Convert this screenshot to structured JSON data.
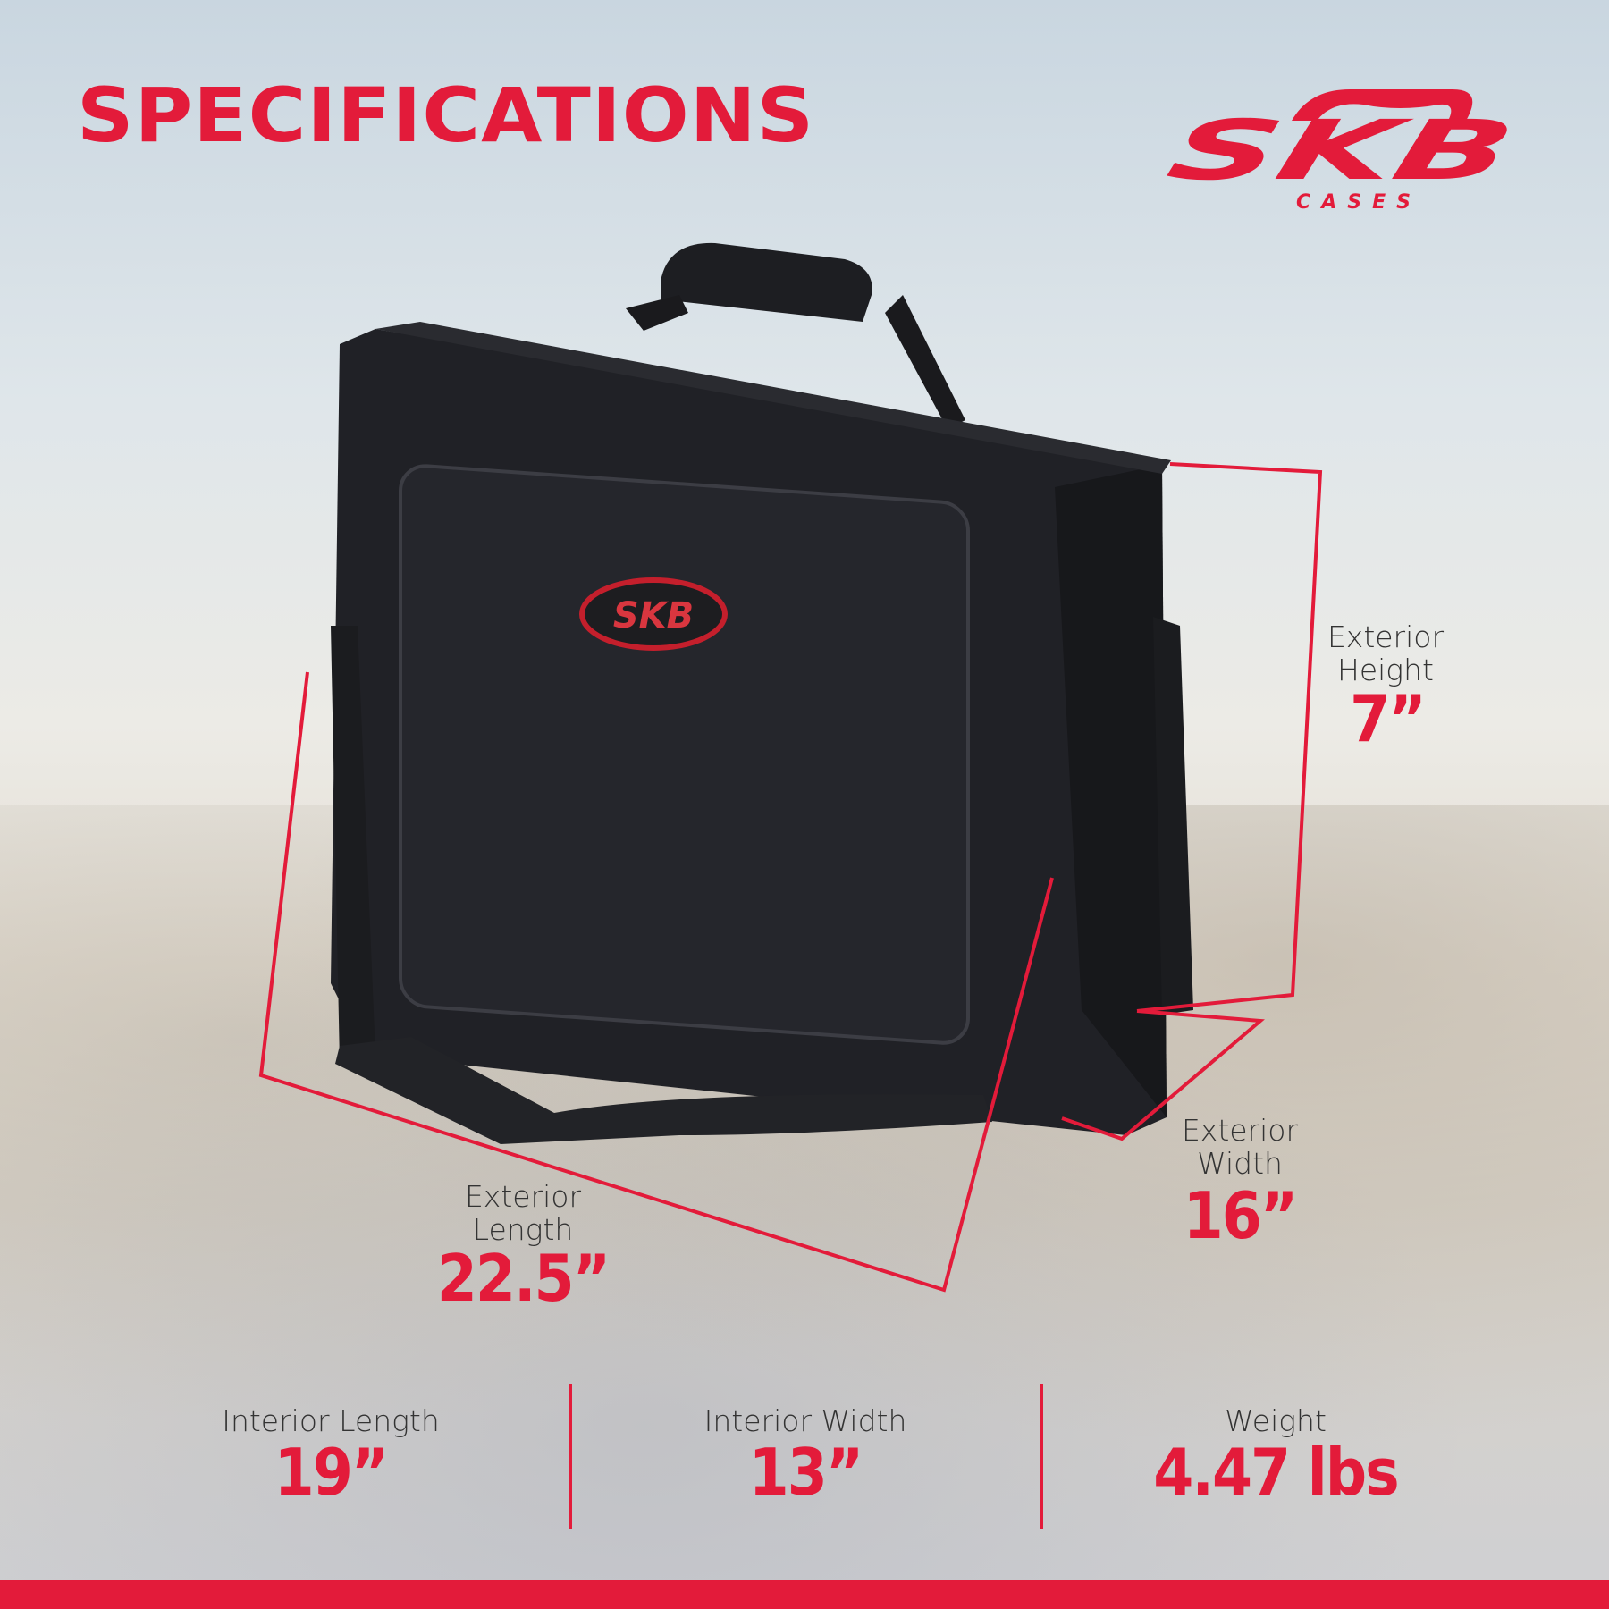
{
  "header": {
    "title": "SPECIFICATIONS"
  },
  "brand": {
    "logo_text": "SKB",
    "logo_subtext": "CASES",
    "accent_color": "#e31b3a"
  },
  "product": {
    "badge_text": "SKB"
  },
  "dimensions": {
    "height": {
      "label_line1": "Exterior",
      "label_line2": "Height",
      "value": "7”"
    },
    "width": {
      "label_line1": "Exterior",
      "label_line2": "Width",
      "value": "16”"
    },
    "length": {
      "label_line1": "Exterior",
      "label_line2": "Length",
      "value": "22.5”"
    }
  },
  "specs": [
    {
      "label": "Interior Length",
      "value": "19”"
    },
    {
      "label": "Interior Width",
      "value": "13”"
    },
    {
      "label": "Weight",
      "value": "4.47 lbs"
    }
  ]
}
